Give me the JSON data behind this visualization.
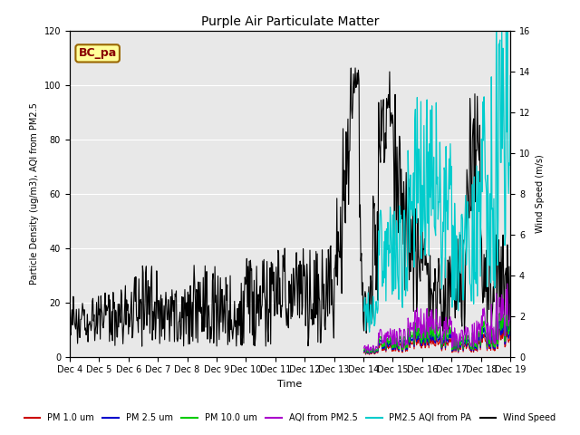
{
  "title": "Purple Air Particulate Matter",
  "xlabel": "Time",
  "ylabel_left": "Particle Density (ug/m3), AQI from PM2.5",
  "ylabel_right": "Wind Speed (m/s)",
  "label_text": "BC_pa",
  "ylim_left": [
    0,
    120
  ],
  "ylim_right": [
    0,
    16
  ],
  "yticks_left": [
    0,
    20,
    40,
    60,
    80,
    100,
    120
  ],
  "yticks_right": [
    0,
    2,
    4,
    6,
    8,
    10,
    12,
    14,
    16
  ],
  "xtick_labels": [
    "Dec 4",
    "Dec 5",
    "Dec 6",
    "Dec 7",
    "Dec 8",
    "Dec 9",
    "Dec 10",
    "Dec 11",
    "Dec 12",
    "Dec 13",
    "Dec 14",
    "Dec 15",
    "Dec 16",
    "Dec 17",
    "Dec 18",
    "Dec 19"
  ],
  "colors": {
    "pm1": "#cc0000",
    "pm25": "#0000cc",
    "pm10": "#00cc00",
    "aqi_pm25": "#aa00cc",
    "aqi_pa": "#00cccc",
    "wind": "#000000",
    "background": "#e8e8e8",
    "label_bg": "#ffff99",
    "label_border": "#996600",
    "label_text": "#880000"
  },
  "legend": [
    {
      "label": "PM 1.0 um",
      "color": "#cc0000"
    },
    {
      "label": "PM 2.5 um",
      "color": "#0000cc"
    },
    {
      "label": "PM 10.0 um",
      "color": "#00cc00"
    },
    {
      "label": "AQI from PM2.5",
      "color": "#aa00cc"
    },
    {
      "label": "PM2.5 AQI from PA",
      "color": "#00cccc"
    },
    {
      "label": "Wind Speed",
      "color": "#000000"
    }
  ]
}
